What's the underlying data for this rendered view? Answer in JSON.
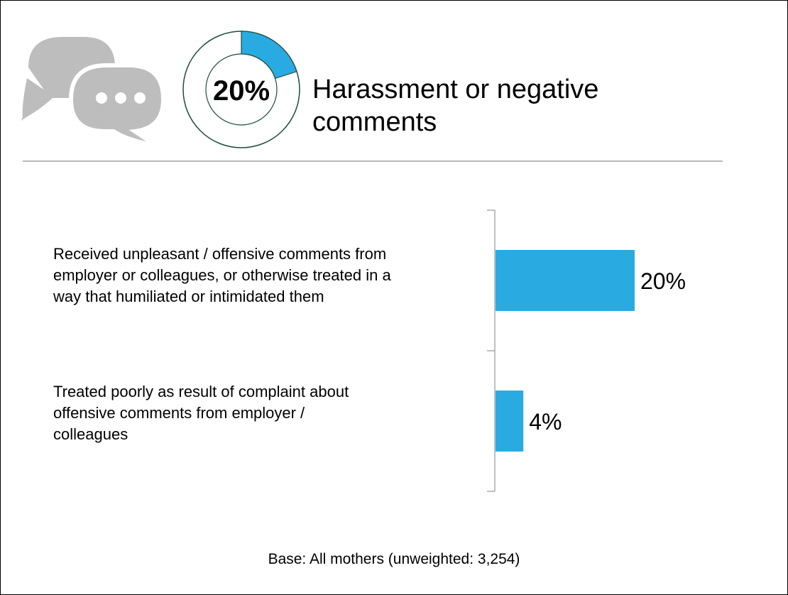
{
  "header": {
    "donut_label": "20%",
    "title_line1": "Harassment or negative",
    "title_line2": "comments"
  },
  "icons": {
    "speech": "speech-bubbles-icon"
  },
  "colors": {
    "bar": "#29abe2",
    "bubble": "#bdbdbd",
    "donut_ring": "#1f4d3a",
    "divider": "#b9b9b9"
  },
  "chart_data": [
    {
      "type": "pie",
      "values": [
        20,
        80
      ],
      "label": "20%"
    },
    {
      "type": "bar",
      "orientation": "horizontal",
      "title": "Harassment or negative comments",
      "categories": [
        "Received unpleasant / offensive comments from employer or colleagues, or otherwise treated in a way that humiliated or intimidated them",
        "Treated poorly as result of complaint about offensive comments from employer / colleagues"
      ],
      "category_lines": [
        [
          "Received unpleasant / offensive comments from",
          "employer or colleagues, or otherwise treated in a",
          "way that humiliated or intimidated them"
        ],
        [
          "Treated poorly as result of complaint about",
          "offensive comments from employer /",
          "colleagues"
        ]
      ],
      "values": [
        20,
        4
      ],
      "data_labels": [
        "20%",
        "4%"
      ],
      "xlim": [
        0,
        20
      ],
      "grid": false
    }
  ],
  "footer": {
    "base": "Base: All mothers (unweighted: 3,254)"
  }
}
